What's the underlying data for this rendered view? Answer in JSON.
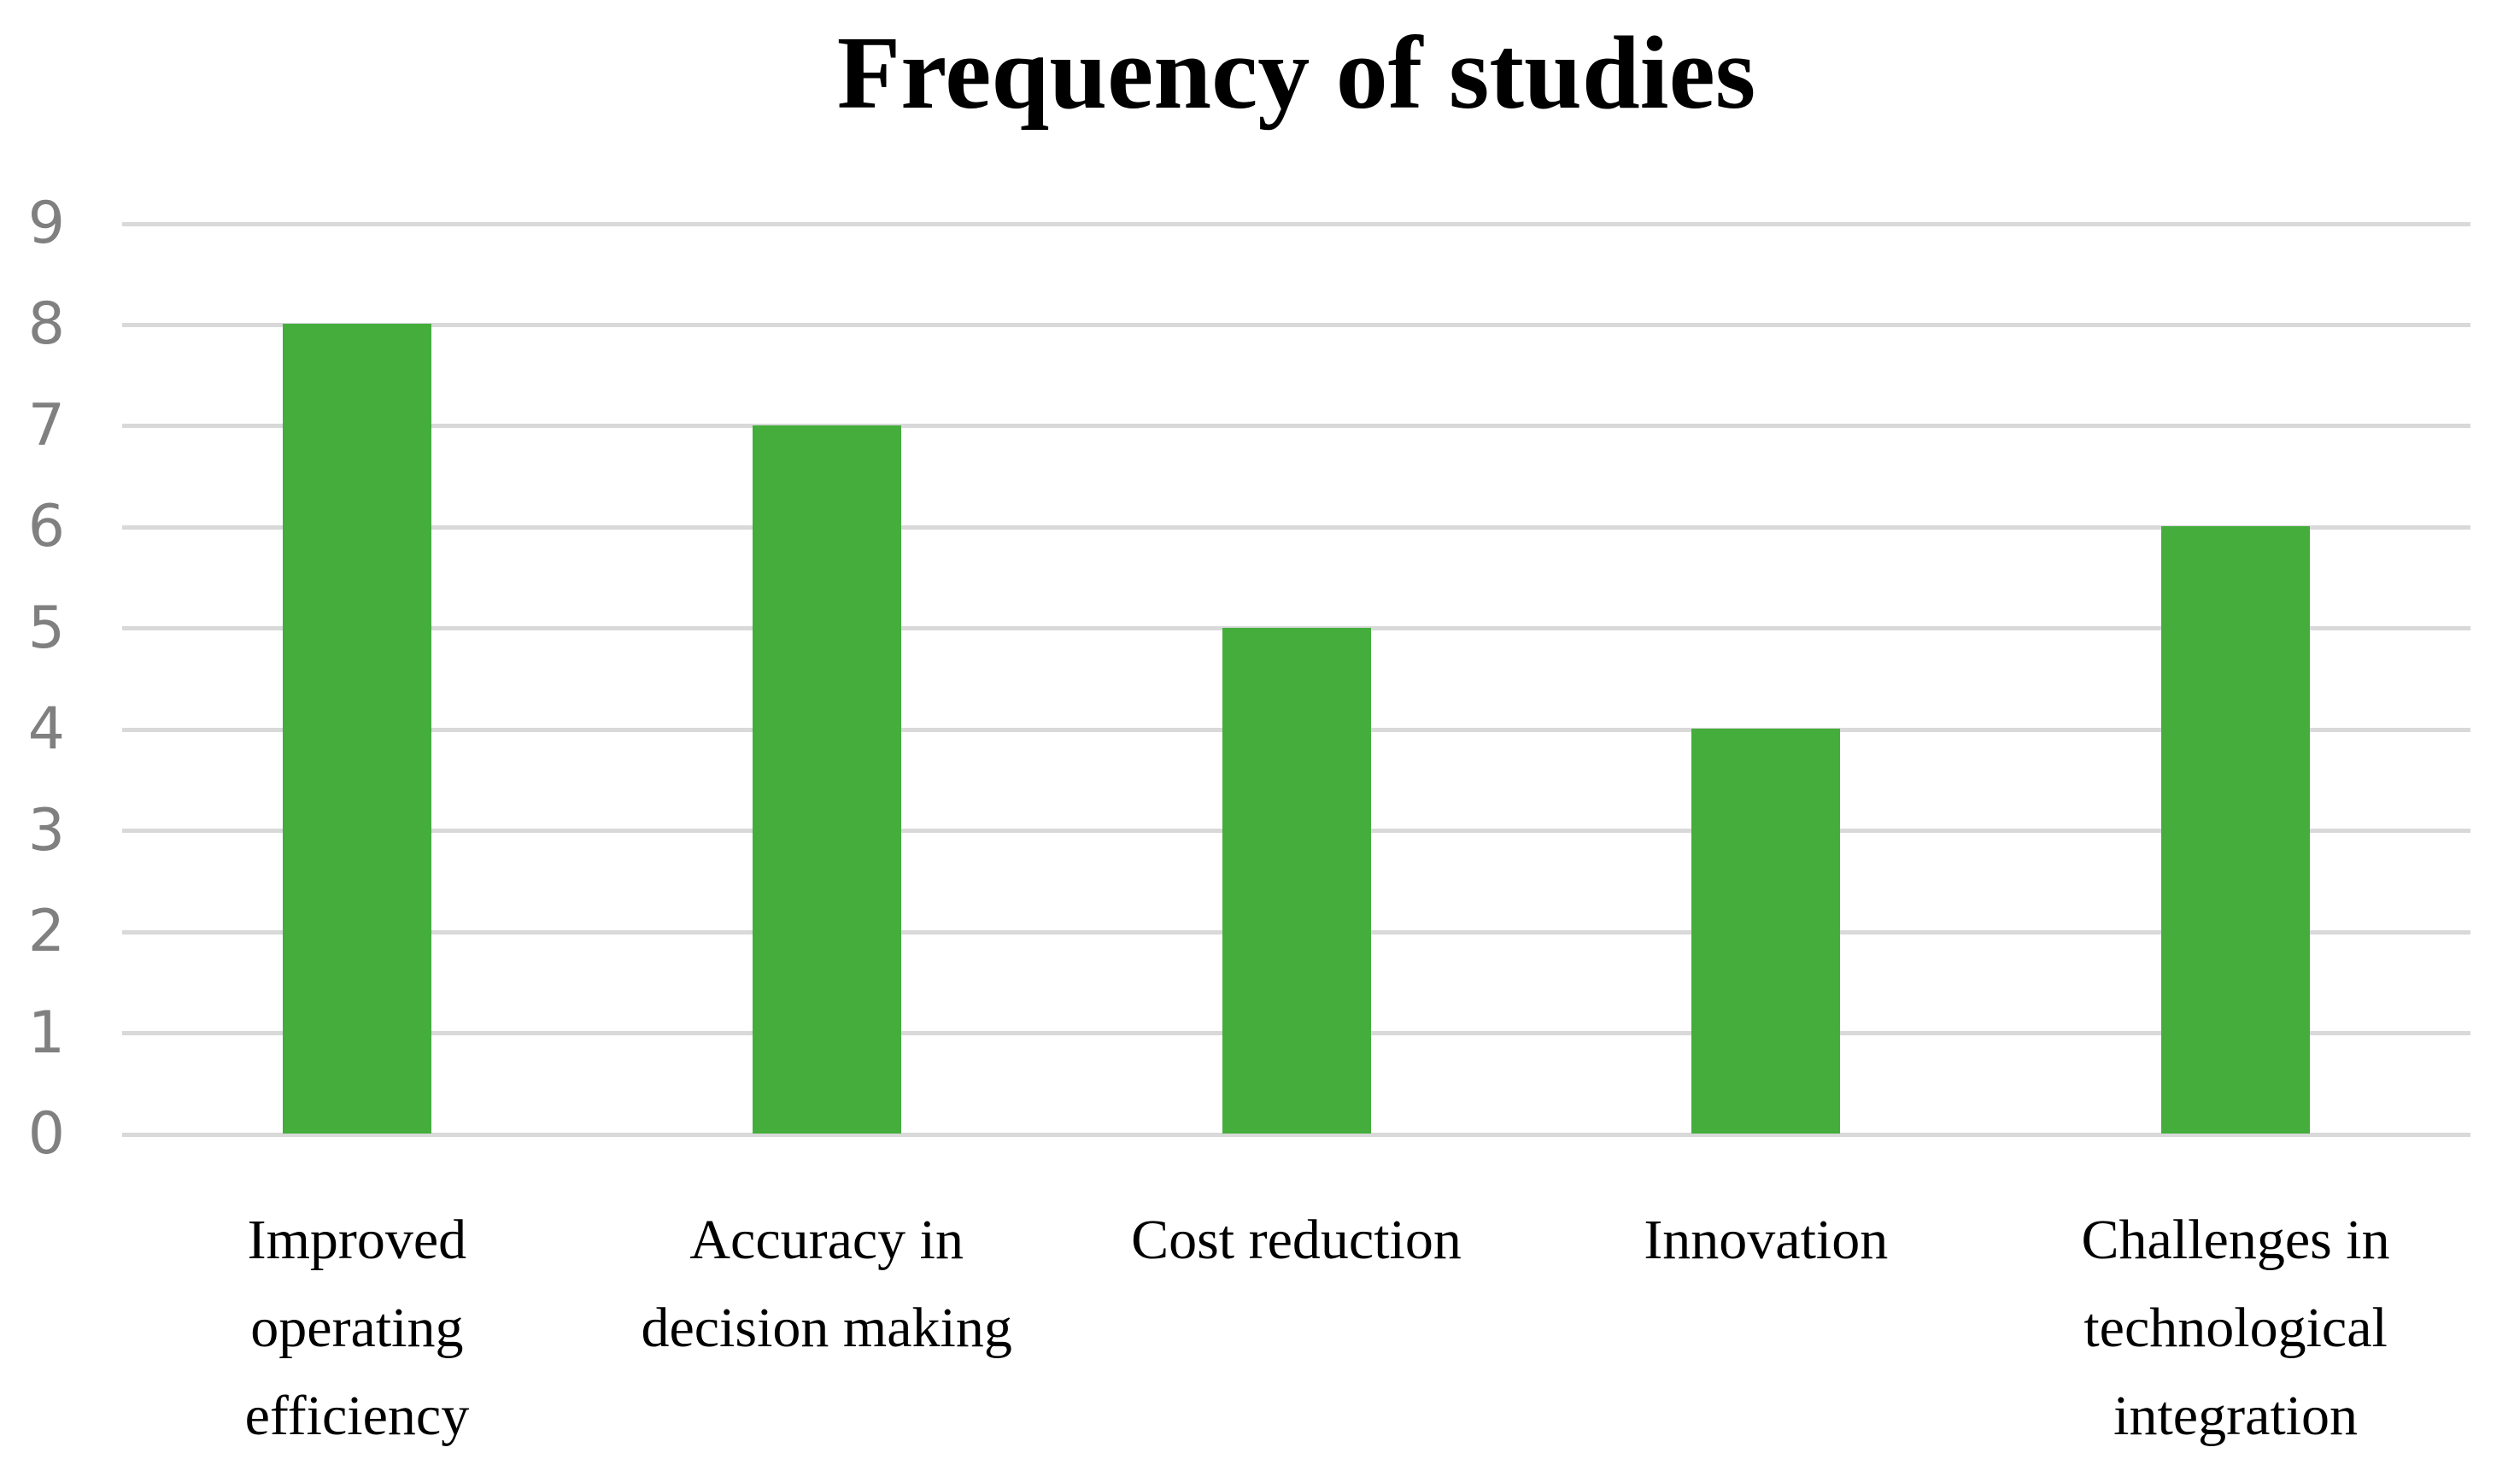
{
  "chart_data": {
    "type": "bar",
    "title": "Frequency of studies",
    "categories": [
      "Improved operating efficiency",
      "Accuracy in decision making",
      "Cost reduction",
      "Innovation",
      "Challenges in technological integration"
    ],
    "values": [
      8,
      7,
      5,
      4,
      6
    ],
    "series_count": 1,
    "xlabel": "",
    "ylabel": "",
    "ylim": [
      0,
      9
    ],
    "yticks": [
      0,
      1,
      2,
      3,
      4,
      5,
      6,
      7,
      8,
      9
    ],
    "grid": true,
    "legend_position": "none",
    "colors": {
      "bar": "#44AD3C",
      "gridline": "#D9D9D9",
      "tick_label": "#808080",
      "title": "#000000",
      "category_label": "#000000",
      "background": "#FFFFFF"
    }
  }
}
